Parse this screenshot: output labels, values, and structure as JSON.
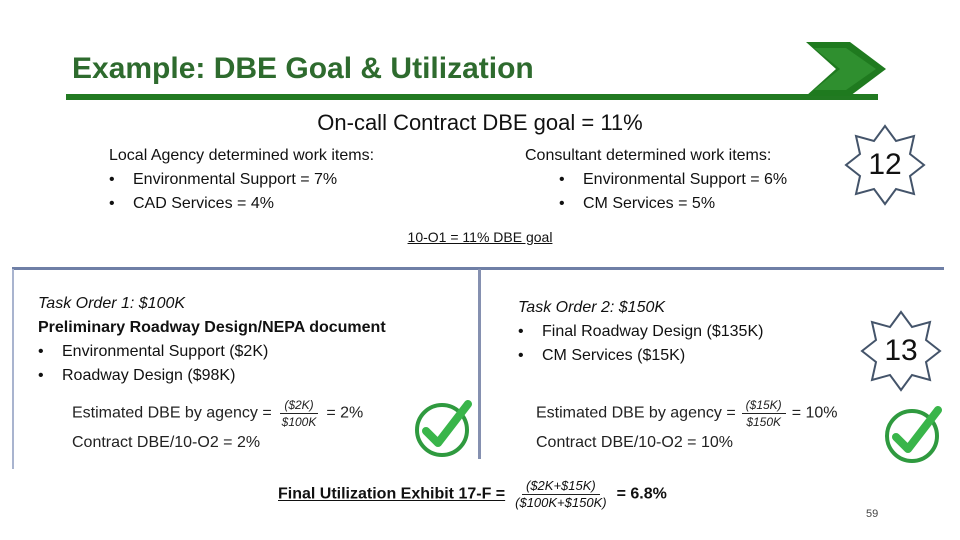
{
  "slide": {
    "title": "Example: DBE Goal & Utilization",
    "goal_line": "On-call Contract DBE goal = 11%",
    "page_number": "59",
    "accent_color": "#227a22"
  },
  "local_agency": {
    "heading": "Local Agency determined work items:",
    "items": [
      "Environmental Support = 7%",
      "CAD Services = 4%"
    ]
  },
  "consultant": {
    "heading": "Consultant determined work items:",
    "items": [
      "Environmental Support = 6%",
      "CM Services = 5%"
    ]
  },
  "badges": {
    "first": "12",
    "second": "13"
  },
  "mid_note": "10-O1 = 11% DBE goal",
  "task1": {
    "title": "Task Order 1: $100K",
    "subtitle": "Preliminary Roadway Design/NEPA document",
    "items": [
      "Environmental Support ($2K)",
      "Roadway Design ($98K)"
    ],
    "estimate_label": "Estimated DBE by agency =",
    "estimate_num": "($2K)",
    "estimate_den": "$100K",
    "estimate_result": "= 2%",
    "contract_line": "Contract DBE/10-O2 = 2%"
  },
  "task2": {
    "title": "Task Order 2: $150K",
    "items": [
      "Final Roadway Design ($135K)",
      "CM Services ($15K)"
    ],
    "estimate_label": "Estimated DBE by agency =",
    "estimate_num": "($15K)",
    "estimate_den": "$150K",
    "estimate_result": "= 10%",
    "contract_line": "Contract DBE/10-O2 = 10%"
  },
  "final": {
    "label": "Final Utilization Exhibit 17-F =",
    "num": "($2K+$15K)",
    "den": "($100K+$150K)",
    "result": "= 6.8%"
  },
  "icons": [
    "arrow-icon",
    "star-badge-icon",
    "checkmark-icon"
  ]
}
